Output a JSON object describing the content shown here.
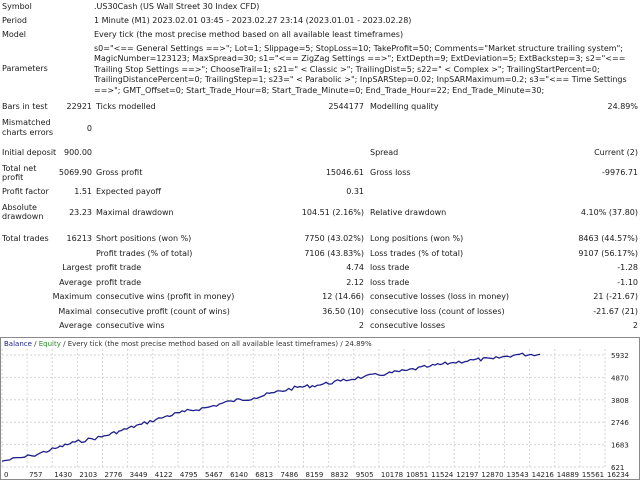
{
  "header": {
    "symbol_label": "Symbol",
    "symbol_value": ".US30Cash (US Wall Street 30 Index CFD)",
    "period_label": "Period",
    "period_value": "1 Minute (M1) 2023.02.01 03:45 - 2023.02.27 23:14 (2023.01.01 - 2023.02.28)",
    "model_label": "Model",
    "model_value": "Every tick (the most precise method based on all available least timeframes)",
    "parameters_label": "Parameters",
    "parameters_value": "s0=\"<== General Settings ==>\"; Lot=1; Slippage=5; StopLoss=10; TakeProfit=50; Comments=\"Market structure trailing system\"; MagicNumber=123123; MaxSpread=30; s1=\"<== ZigZag Settings ==>\"; ExtDepth=9; ExtDeviation=5; ExtBackstep=3; s2=\"<== Trailing Stop Settings ==>\"; ChooseTrail=1; s21=\" < Classic >\"; TrailingDist=5; s22=\" < Complex >\"; TrailingStartPercent=0; TrailingDistancePercent=0; TrailingStep=1; s23=\" < Parabolic >\"; InpSARStep=0.02; InpSARMaximum=0.2; s3=\"<== Time Settings ==>\"; GMT_Offset=0; Start_Trade_Hour=8; Start_Trade_Minute=0; End_Trade_Hour=22; End_Trade_Minute=30;"
  },
  "stats": {
    "bars_label": "Bars in test",
    "bars_value": "22921",
    "ticks_label": "Ticks modelled",
    "ticks_value": "2544177",
    "quality_label": "Modelling quality",
    "quality_value": "24.89%",
    "mismatch_label": "Mismatched charts errors",
    "mismatch_value": "0",
    "deposit_label": "Initial deposit",
    "deposit_value": "900.00",
    "spread_label": "Spread",
    "spread_value": "Current (2)",
    "netprofit_label": "Total net profit",
    "netprofit_value": "5069.90",
    "grossprofit_label": "Gross profit",
    "grossprofit_value": "15046.61",
    "grossloss_label": "Gross loss",
    "grossloss_value": "-9976.71",
    "pf_label": "Profit factor",
    "pf_value": "1.51",
    "payoff_label": "Expected payoff",
    "payoff_value": "0.31",
    "absdd_label": "Absolute drawdown",
    "absdd_value": "23.23",
    "maxdd_label": "Maximal drawdown",
    "maxdd_value": "104.51 (2.16%)",
    "reldd_label": "Relative drawdown",
    "reldd_value": "4.10% (37.80)",
    "trades_label": "Total trades",
    "trades_value": "16213",
    "short_label": "Short positions (won %)",
    "short_value": "7750 (43.02%)",
    "long_label": "Long positions (won %)",
    "long_value": "8463 (44.57%)",
    "pt_label": "Profit trades (% of total)",
    "pt_value": "7106 (43.83%)",
    "lt_label": "Loss trades (% of total)",
    "lt_value": "9107 (56.17%)",
    "largest_label": "Largest",
    "largest_pt_label": "profit trade",
    "largest_pt_value": "4.74",
    "largest_lt_label": "loss trade",
    "largest_lt_value": "-1.28",
    "average_label": "Average",
    "average_pt_label": "profit trade",
    "average_pt_value": "2.12",
    "average_lt_label": "loss trade",
    "average_lt_value": "-1.10",
    "maximum_label": "Maximum",
    "max_cw_label": "consecutive wins (profit in money)",
    "max_cw_value": "12 (14.66)",
    "max_cl_label": "consecutive losses (loss in money)",
    "max_cl_value": "21 (-21.67)",
    "maximal_label": "Maximal",
    "maxl_cp_label": "consecutive profit (count of wins)",
    "maxl_cp_value": "36.50 (10)",
    "maxl_cl_label": "consecutive loss (count of losses)",
    "maxl_cl_value": "-21.67 (21)",
    "avg2_label": "Average",
    "avg_cw_label": "consecutive wins",
    "avg_cw_value": "2",
    "avg_cl_label": "consecutive losses",
    "avg_cl_value": "2"
  },
  "chart_data": {
    "type": "line",
    "legend": {
      "balance": "Balance",
      "sep1": " / ",
      "equity": "Equity",
      "sep2": " / ",
      "model": "Every tick (the most precise method based on all available least timeframes)",
      "sep3": " / ",
      "quality": "24.89%"
    },
    "colors": {
      "balance": "#1e1e8c",
      "equity": "#2a8c2a",
      "grid": "#d6d6d6"
    },
    "x_ticks": [
      "0",
      "757",
      "1430",
      "2103",
      "2776",
      "3449",
      "4122",
      "4795",
      "5467",
      "6140",
      "6813",
      "7486",
      "8159",
      "8832",
      "9505",
      "10178",
      "10851",
      "11524",
      "12197",
      "12870",
      "13543",
      "14216",
      "14889",
      "15561",
      "16234"
    ],
    "y_ticks": [
      "621",
      "1683",
      "2746",
      "3808",
      "4870",
      "5932"
    ],
    "xlim": [
      0,
      16920
    ],
    "ylim": [
      621,
      6460
    ],
    "x": [
      0,
      900,
      1600,
      2200,
      3000,
      3600,
      4200,
      4900,
      5500,
      6200,
      6900,
      7600,
      8200,
      8900,
      9500,
      10200,
      10900,
      11600,
      12200,
      12900,
      13500,
      14200,
      14800,
      15500,
      16213
    ],
    "y": [
      900,
      1150,
      1500,
      1800,
      2050,
      2350,
      2650,
      3000,
      3250,
      3450,
      3750,
      3900,
      4150,
      4400,
      4500,
      4700,
      4900,
      5050,
      5200,
      5400,
      5550,
      5700,
      5750,
      5950,
      5970
    ]
  }
}
